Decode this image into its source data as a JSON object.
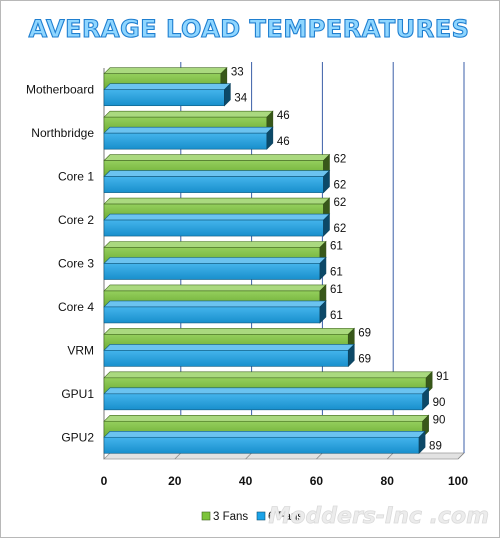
{
  "chart_data": {
    "type": "bar",
    "orientation": "horizontal",
    "title": "AVERAGE LOAD TEMPERATURES",
    "categories": [
      "Motherboard",
      "Northbridge",
      "Core 1",
      "Core 2",
      "Core 3",
      "Core 4",
      "VRM",
      "GPU1",
      "GPU2"
    ],
    "series": [
      {
        "name": "3 Fans",
        "color": "#7cc43a",
        "values": [
          33,
          46,
          62,
          62,
          61,
          61,
          69,
          91,
          90
        ]
      },
      {
        "name": "6 Fans",
        "color": "#1ba3e8",
        "values": [
          34,
          46,
          62,
          62,
          61,
          61,
          69,
          90,
          89
        ]
      }
    ],
    "xlim": [
      0,
      100
    ],
    "xticks": [
      "0",
      "20",
      "40",
      "60",
      "80",
      "100"
    ],
    "grid": true,
    "legend_position": "bottom-center",
    "watermark": "Modders-Inc .com"
  }
}
